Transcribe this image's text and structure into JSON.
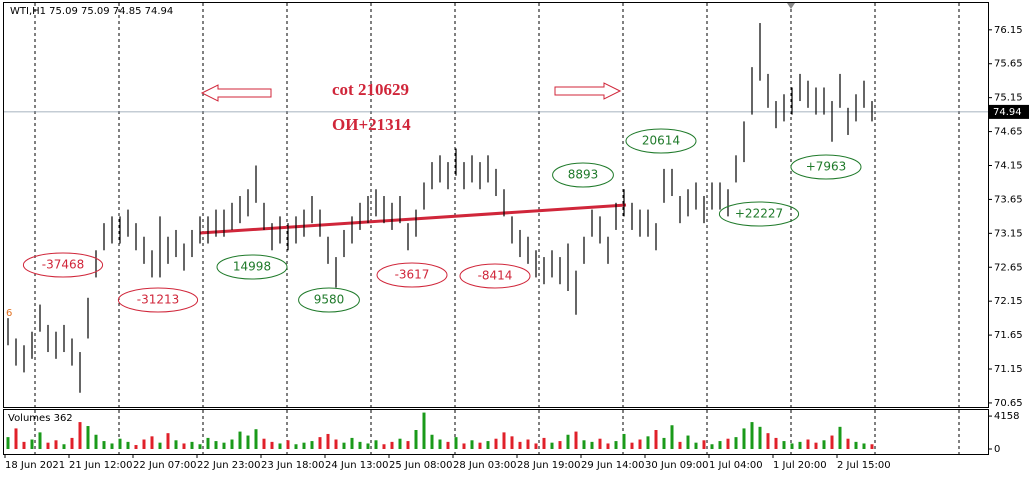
{
  "chart_data": {
    "type": "ohlc",
    "title": "WTI,H1  75.09 75.09 74.85 74.94",
    "categories": [
      "18 Jun 2021",
      "21 Jun 12:00",
      "22 Jun 07:00",
      "22 Jun 23:00",
      "23 Jun 18:00",
      "24 Jun 13:00",
      "25 Jun 08:00",
      "28 Jun 03:00",
      "28 Jun 19:00",
      "29 Jun 14:00",
      "30 Jun 09:00",
      "1 Jul 04:00",
      "1 Jul 20:00",
      "2 Jul 15:00"
    ],
    "high": [
      71.9,
      71.6,
      71.5,
      71.7,
      72.1,
      71.8,
      71.7,
      71.8,
      71.6,
      71.4,
      72.2,
      72.9,
      73.3,
      73.4,
      73.4,
      73.5,
      73.3,
      73.1,
      72.9,
      73.4,
      73.1,
      73.2,
      73.0,
      73.2,
      73.4,
      73.4,
      73.5,
      73.5,
      73.6,
      73.7,
      73.8,
      74.15,
      73.6,
      73.3,
      73.4,
      73.3,
      73.4,
      73.5,
      73.7,
      73.5,
      73.1,
      72.8,
      73.2,
      73.4,
      73.6,
      73.7,
      73.8,
      73.7,
      73.6,
      73.7,
      73.3,
      73.5,
      73.9,
      74.2,
      74.3,
      74.2,
      74.4,
      74.2,
      74.3,
      74.2,
      74.3,
      74.1,
      73.8,
      73.4,
      73.2,
      73.1,
      72.9,
      72.8,
      72.9,
      72.8,
      73.0,
      72.6,
      73.1,
      73.5,
      73.4,
      73.1,
      73.6,
      73.8,
      73.6,
      73.5,
      73.5,
      73.3,
      74.1,
      74.1,
      73.7,
      73.8,
      73.9,
      73.7,
      73.9,
      73.9,
      73.8,
      74.3,
      74.8,
      75.6,
      76.25,
      75.5,
      75.1,
      75.2,
      75.3,
      75.5,
      75.4,
      75.3,
      75.3,
      75.1,
      75.5,
      75.0,
      75.2,
      75.4,
      75.1
    ],
    "low": [
      71.5,
      71.2,
      71.1,
      71.3,
      71.7,
      71.4,
      71.3,
      71.4,
      71.2,
      70.8,
      71.6,
      72.5,
      72.9,
      73.0,
      73.0,
      73.1,
      72.9,
      72.7,
      72.5,
      72.5,
      72.7,
      72.8,
      72.6,
      72.8,
      73.0,
      73.0,
      73.1,
      73.1,
      73.2,
      73.3,
      73.4,
      73.6,
      73.2,
      72.9,
      73.0,
      72.9,
      73.0,
      73.1,
      73.3,
      73.1,
      72.7,
      72.35,
      72.8,
      73.0,
      73.2,
      73.3,
      73.4,
      73.3,
      73.2,
      73.3,
      72.9,
      73.1,
      73.5,
      73.8,
      73.9,
      73.8,
      74.0,
      73.8,
      73.9,
      73.8,
      73.9,
      73.7,
      73.4,
      73.0,
      72.8,
      72.7,
      72.5,
      72.4,
      72.5,
      72.4,
      72.3,
      71.95,
      72.7,
      73.1,
      73.0,
      72.7,
      73.2,
      73.4,
      73.2,
      73.1,
      73.1,
      72.9,
      73.6,
      73.7,
      73.3,
      73.4,
      73.5,
      73.3,
      73.5,
      73.5,
      73.4,
      73.9,
      74.2,
      74.9,
      75.4,
      75.0,
      74.7,
      74.8,
      74.9,
      75.1,
      75.0,
      74.9,
      74.9,
      74.5,
      75.0,
      74.6,
      74.8,
      75.0,
      74.8
    ],
    "volume": [
      1500,
      2600,
      900,
      1200,
      2100,
      800,
      1100,
      600,
      1400,
      3400,
      2900,
      1800,
      1000,
      700,
      1300,
      900,
      500,
      1200,
      1600,
      800,
      2000,
      1100,
      700,
      900,
      600,
      1400,
      1000,
      800,
      1200,
      2200,
      1700,
      2500,
      1300,
      900,
      700,
      1100,
      600,
      800,
      1000,
      1500,
      1900,
      1200,
      800,
      1400,
      900,
      700,
      1100,
      600,
      900,
      1300,
      1000,
      2400,
      4600,
      1800,
      1200,
      900,
      1500,
      700,
      1100,
      800,
      1000,
      1300,
      2100,
      1600,
      900,
      1200,
      700,
      1400,
      800,
      1000,
      1800,
      2200,
      1100,
      900,
      1300,
      700,
      1000,
      1900,
      800,
      1200,
      1600,
      2400,
      1400,
      3000,
      900,
      1700,
      800,
      1100,
      600,
      1000,
      1300,
      1500,
      2600,
      3400,
      2800,
      2000,
      1400,
      1000,
      700,
      900,
      1200,
      800,
      1100,
      1700,
      2800,
      1300,
      900,
      700,
      600
    ],
    "ylim": [
      70.59,
      76.56
    ],
    "yticks": [
      76.15,
      75.65,
      75.15,
      74.65,
      74.15,
      73.65,
      73.15,
      72.65,
      72.15,
      71.65,
      71.15,
      70.65
    ],
    "last_price": 74.94,
    "volume_title": "Volumes 362",
    "volume_ylim": [
      0,
      4800
    ],
    "volume_yticks": [
      4158,
      0
    ],
    "left_marker": "6",
    "notes": [
      "cot 210629",
      "ОИ+21314"
    ],
    "annotations": [
      {
        "text": "-37468",
        "color": "#d0263a"
      },
      {
        "text": "-31213",
        "color": "#d0263a"
      },
      {
        "text": "14998",
        "color": "#1f7a2a"
      },
      {
        "text": "9580",
        "color": "#1f7a2a"
      },
      {
        "text": "-3617",
        "color": "#d0263a"
      },
      {
        "text": "-8414",
        "color": "#d0263a"
      },
      {
        "text": "8893",
        "color": "#1f7a2a"
      },
      {
        "text": "20614",
        "color": "#1f7a2a"
      },
      {
        "text": "+22227",
        "color": "#1f7a2a"
      },
      {
        "text": "+7963",
        "color": "#1f7a2a"
      }
    ],
    "up_color": "#1a9a1a",
    "down_color": "#e0202a",
    "bar_color": "#000000"
  }
}
